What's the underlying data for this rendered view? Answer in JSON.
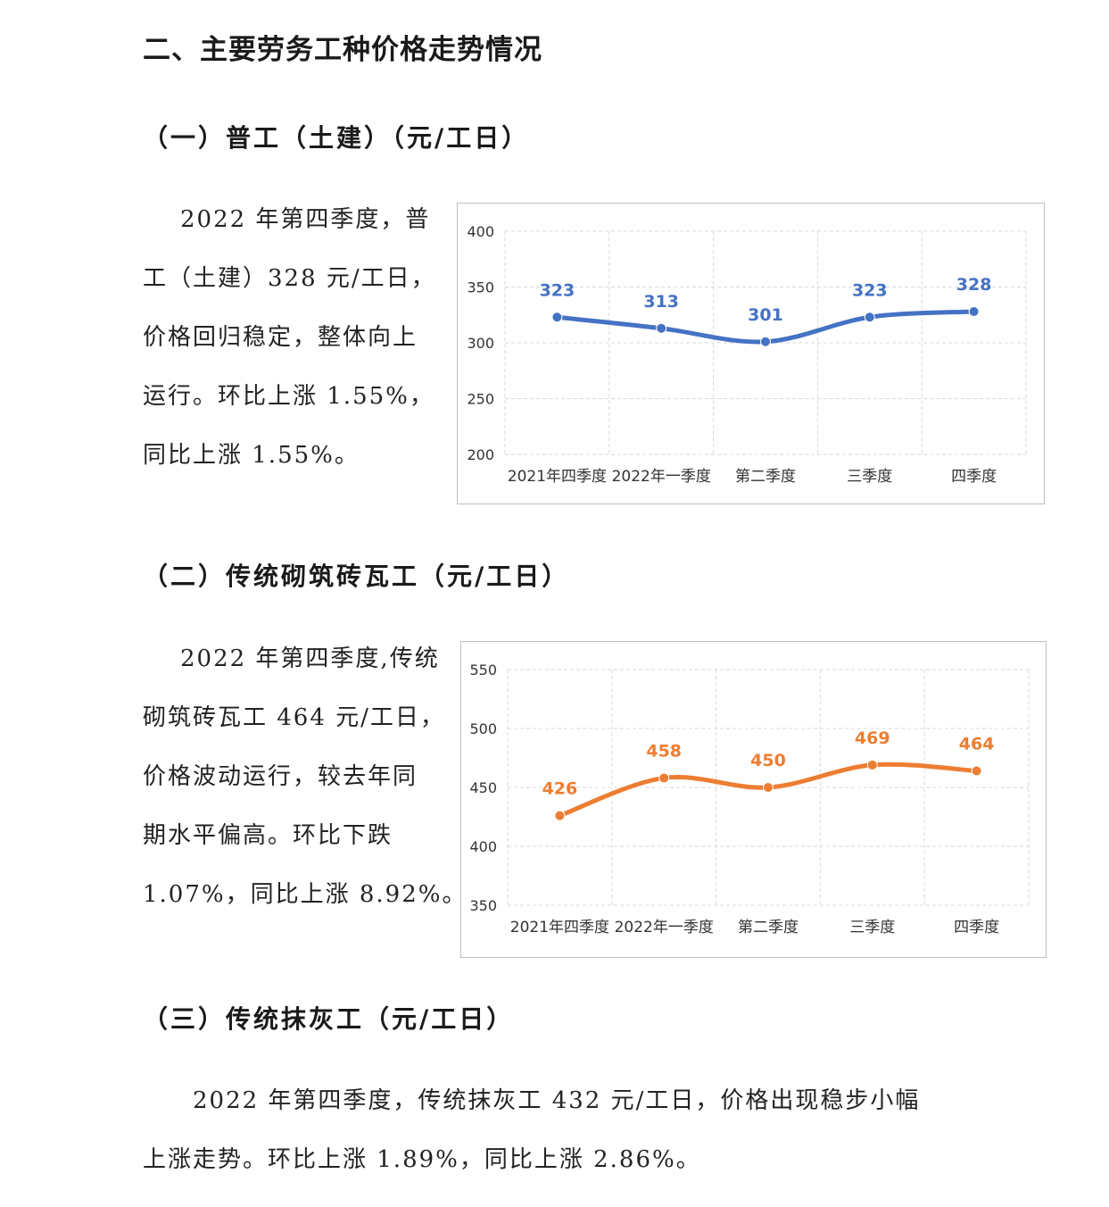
{
  "main_title": "二、主要劳务工种价格走势情况",
  "section1": {
    "title": "（一）普工（土建）（元/工日）",
    "paragraph": [
      "2022 年第四季度，普",
      "工（土建）328 元/工日，",
      "价格回归稳定，整体向上",
      "运行。环比上涨 1.55%，",
      "同比上涨 1.55%。"
    ]
  },
  "section2": {
    "title": "（二）传统砌筑砖瓦工（元/工日）",
    "paragraph": [
      "2022 年第四季度,传统",
      "砌筑砖瓦工 464 元/工日，",
      "价格波动运行，较去年同",
      "期水平偏高。环比下跌",
      "1.07%，同比上涨 8.92%。"
    ]
  },
  "section3": {
    "title": "（三）传统抹灰工（元/工日）",
    "paragraph": [
      "2022 年第四季度，传统抹灰工 432 元/工日，价格出现稳步小幅",
      "上涨走势。环比上涨 1.89%，同比上涨 2.86%。"
    ]
  },
  "chart_data": [
    {
      "type": "line",
      "categories": [
        "2021年四季度",
        "2022年一季度",
        "第二季度",
        "三季度",
        "四季度"
      ],
      "values": [
        323,
        313,
        301,
        323,
        328
      ],
      "ylim": [
        200,
        400
      ],
      "yticks": [
        400,
        350,
        300,
        250,
        200
      ],
      "grid": true,
      "smooth": true,
      "data_labels": true,
      "color": "#4472C4"
    },
    {
      "type": "line",
      "categories": [
        "2021年四季度",
        "2022年一季度",
        "第二季度",
        "三季度",
        "四季度"
      ],
      "values": [
        426,
        458,
        450,
        469,
        464
      ],
      "ylim": [
        350,
        550
      ],
      "yticks": [
        550,
        500,
        450,
        400,
        350
      ],
      "grid": true,
      "smooth": true,
      "data_labels": true,
      "color": "#ED7D31"
    }
  ]
}
